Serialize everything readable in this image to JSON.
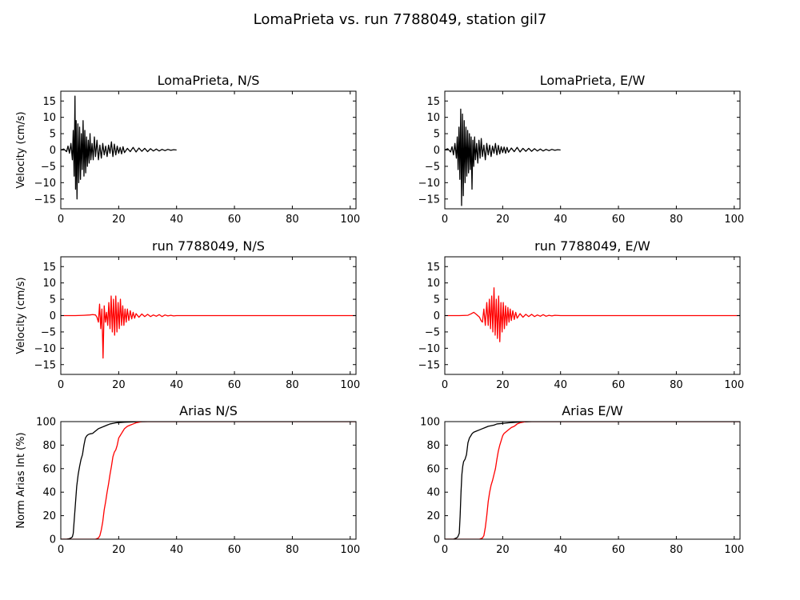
{
  "figure": {
    "title": "LomaPrieta vs. run 7788049, station gil7"
  },
  "colors": {
    "recorded": "#000000",
    "simulated": "#ff0000"
  },
  "chart_data": [
    {
      "type": "line",
      "title": "LomaPrieta, N/S",
      "xlabel": "",
      "ylabel": "Velocity (cm/s)",
      "xlim": [
        0,
        102
      ],
      "ylim": [
        -18,
        18
      ],
      "xticks": [
        0,
        20,
        40,
        60,
        80,
        100
      ],
      "yticks": [
        -15,
        -10,
        -5,
        0,
        5,
        10,
        15
      ],
      "series": [
        {
          "color": "#000000",
          "x": [
            0,
            1,
            2,
            2.5,
            3,
            3.5,
            4,
            4.3,
            4.6,
            4.9,
            5.1,
            5.3,
            5.6,
            5.9,
            6.2,
            6.5,
            6.8,
            7.1,
            7.4,
            7.7,
            8,
            8.3,
            8.6,
            8.9,
            9.2,
            9.5,
            9.8,
            10.1,
            10.4,
            10.8,
            11.2,
            11.6,
            12,
            12.5,
            13,
            13.5,
            14,
            14.5,
            15,
            15.5,
            16,
            16.5,
            17,
            17.5,
            18,
            18.5,
            19,
            19.5,
            20,
            20.5,
            21,
            21.5,
            22,
            23,
            24,
            25,
            26,
            27,
            28,
            29,
            30,
            31,
            32,
            33,
            34,
            35,
            36,
            37,
            38,
            39,
            40
          ],
          "y": [
            0,
            0.3,
            -0.5,
            1.2,
            -1,
            2,
            -3,
            6,
            -8,
            16.5,
            -12,
            9,
            -15,
            8,
            -10,
            7,
            -9,
            5,
            -6,
            9,
            -8,
            6,
            -7,
            4,
            -5,
            3,
            -4,
            5,
            -3,
            2,
            -3,
            4,
            -2,
            3,
            -3,
            1.5,
            -2.5,
            2,
            -1.5,
            1.2,
            -2,
            1.5,
            -1,
            2.5,
            -2,
            1.8,
            -1.5,
            1.2,
            -1,
            0.8,
            -1.2,
            1,
            -0.8,
            0.5,
            -0.5,
            0.8,
            -0.6,
            0.6,
            -0.4,
            0.5,
            -0.5,
            0.4,
            -0.3,
            0.3,
            -0.3,
            0.2,
            -0.2,
            0.2,
            -0.1,
            0.1,
            0
          ]
        }
      ]
    },
    {
      "type": "line",
      "title": "LomaPrieta, E/W",
      "xlabel": "",
      "ylabel": "",
      "xlim": [
        0,
        102
      ],
      "ylim": [
        -18,
        18
      ],
      "xticks": [
        0,
        20,
        40,
        60,
        80,
        100
      ],
      "yticks": [
        -15,
        -10,
        -5,
        0,
        5,
        10,
        15
      ],
      "series": [
        {
          "color": "#000000",
          "x": [
            0,
            1,
            2,
            2.5,
            3,
            3.5,
            4,
            4.3,
            4.6,
            4.9,
            5.2,
            5.5,
            5.8,
            6.1,
            6.4,
            6.7,
            7,
            7.3,
            7.6,
            7.9,
            8.2,
            8.5,
            8.8,
            9.1,
            9.4,
            9.7,
            10,
            10.3,
            10.6,
            11,
            11.4,
            11.8,
            12.2,
            12.6,
            13,
            13.5,
            14,
            14.5,
            15,
            15.5,
            16,
            16.5,
            17,
            17.5,
            18,
            18.5,
            19,
            19.5,
            20,
            20.5,
            21,
            21.5,
            22,
            23,
            24,
            25,
            26,
            27,
            28,
            29,
            30,
            31,
            32,
            33,
            34,
            35,
            36,
            37,
            38,
            39,
            40
          ],
          "y": [
            0,
            0.4,
            -0.6,
            1,
            -1.5,
            2,
            -2.5,
            4,
            -6,
            7,
            -9,
            12.5,
            -17,
            11,
            -14,
            9,
            -10,
            7,
            -8,
            6,
            -7,
            5,
            -6,
            4,
            -12,
            3,
            -5,
            4,
            -3,
            2,
            -4,
            3,
            -2.5,
            3.5,
            -2,
            1.5,
            -3,
            2,
            -1.5,
            1.5,
            -2,
            1.2,
            -1,
            2,
            -1.5,
            1.4,
            -1.2,
            1,
            -0.8,
            0.9,
            -1,
            0.8,
            -0.7,
            0.6,
            -0.5,
            0.8,
            -0.6,
            0.5,
            -0.4,
            0.5,
            -0.4,
            0.4,
            -0.3,
            0.3,
            -0.3,
            0.2,
            -0.2,
            0.2,
            -0.1,
            0.1,
            0
          ]
        }
      ]
    },
    {
      "type": "line",
      "title": "run 7788049, N/S",
      "xlabel": "",
      "ylabel": "Velocity (cm/s)",
      "xlim": [
        0,
        102
      ],
      "ylim": [
        -18,
        18
      ],
      "xticks": [
        0,
        20,
        40,
        60,
        80,
        100
      ],
      "yticks": [
        -15,
        -10,
        -5,
        0,
        5,
        10,
        15
      ],
      "series": [
        {
          "color": "#ff0000",
          "x": [
            0,
            5,
            8,
            10,
            11,
            12,
            12.5,
            13,
            13.4,
            13.8,
            14.2,
            14.6,
            15,
            15.4,
            15.8,
            16.2,
            16.6,
            17,
            17.4,
            17.8,
            18.2,
            18.6,
            19,
            19.4,
            19.8,
            20.2,
            20.6,
            21,
            21.4,
            21.8,
            22.2,
            22.6,
            23,
            23.5,
            24,
            24.5,
            25,
            25.5,
            26,
            27,
            28,
            29,
            30,
            31,
            32,
            33,
            34,
            35,
            36,
            37,
            38,
            39,
            40,
            42,
            45,
            50,
            60,
            70,
            80,
            90,
            100,
            102
          ],
          "y": [
            0,
            0,
            0.1,
            0.2,
            0.3,
            0.2,
            -0.5,
            -2,
            3.5,
            -4,
            2,
            -13,
            3,
            -2,
            1,
            -3,
            4,
            -4,
            6,
            -5,
            5,
            -6,
            6,
            -5,
            4,
            -4,
            5,
            -3,
            3,
            -3,
            2,
            -2,
            2,
            -1.5,
            1.5,
            -1,
            1,
            -0.8,
            0.6,
            -0.5,
            0.5,
            -0.3,
            0.4,
            -0.3,
            0.2,
            -0.2,
            0.3,
            -0.3,
            0.2,
            -0.1,
            0.1,
            -0.1,
            0,
            0,
            0,
            0,
            0,
            0,
            0,
            0,
            0,
            0
          ]
        }
      ]
    },
    {
      "type": "line",
      "title": "run 7788049, E/W",
      "xlabel": "",
      "ylabel": "",
      "xlim": [
        0,
        102
      ],
      "ylim": [
        -18,
        18
      ],
      "xticks": [
        0,
        20,
        40,
        60,
        80,
        100
      ],
      "yticks": [
        -15,
        -10,
        -5,
        0,
        5,
        10,
        15
      ],
      "series": [
        {
          "color": "#ff0000",
          "x": [
            0,
            5,
            8,
            9,
            10,
            11,
            12,
            12.5,
            13,
            13.5,
            14,
            14.5,
            15,
            15.4,
            15.8,
            16.2,
            16.6,
            17,
            17.4,
            17.8,
            18.2,
            18.6,
            19,
            19.4,
            19.8,
            20.2,
            20.6,
            21,
            21.4,
            21.8,
            22.2,
            22.6,
            23,
            23.5,
            24,
            24.5,
            25,
            26,
            27,
            28,
            29,
            30,
            31,
            32,
            33,
            34,
            35,
            36,
            37,
            38,
            40,
            45,
            50,
            60,
            70,
            80,
            90,
            100,
            102
          ],
          "y": [
            0,
            0,
            0.1,
            0.5,
            1,
            0.3,
            -0.5,
            -1.5,
            -2,
            2,
            -3,
            4,
            -3,
            5,
            -4,
            6,
            -5,
            8.5,
            -6,
            5,
            -7,
            6,
            -8,
            4,
            -5,
            4,
            -4,
            3,
            -3,
            2.5,
            -2,
            2,
            -1.5,
            1.5,
            -1.2,
            1,
            -0.8,
            0.6,
            -0.5,
            0.4,
            -0.3,
            0.4,
            -0.3,
            0.2,
            -0.2,
            0.3,
            -0.2,
            0.1,
            -0.1,
            0.1,
            0,
            0,
            0,
            0,
            0,
            0,
            0,
            0,
            0
          ]
        }
      ]
    },
    {
      "type": "line",
      "title": "Arias N/S",
      "xlabel": "",
      "ylabel": "Norm Arias Int (%)",
      "xlim": [
        0,
        102
      ],
      "ylim": [
        0,
        100
      ],
      "xticks": [
        0,
        20,
        40,
        60,
        80,
        100
      ],
      "yticks": [
        0,
        20,
        40,
        60,
        80,
        100
      ],
      "series": [
        {
          "color": "#000000",
          "x": [
            0,
            2,
            3,
            3.5,
            4,
            4.3,
            4.6,
            4.9,
            5.2,
            5.5,
            6,
            6.5,
            7,
            7.5,
            8,
            8.5,
            9,
            9.5,
            10,
            11,
            12,
            13,
            14,
            15,
            16,
            17,
            18,
            19,
            20,
            22,
            25,
            30,
            40,
            102
          ],
          "y": [
            0,
            0,
            0.5,
            1,
            2,
            5,
            15,
            25,
            35,
            45,
            55,
            62,
            68,
            72,
            80,
            86,
            88,
            89,
            89.5,
            90,
            92,
            94,
            95,
            96,
            97,
            98,
            98.5,
            99,
            99.2,
            99.5,
            99.8,
            100,
            100,
            100
          ]
        },
        {
          "color": "#ff0000",
          "x": [
            0,
            12,
            13,
            13.5,
            14,
            14.5,
            15,
            15.5,
            16,
            16.5,
            17,
            17.5,
            18,
            18.5,
            19,
            19.5,
            20,
            20.5,
            21,
            21.5,
            22,
            23,
            24,
            25,
            26,
            27,
            28,
            30,
            102
          ],
          "y": [
            0,
            0,
            1,
            3,
            8,
            15,
            25,
            32,
            40,
            47,
            55,
            62,
            70,
            74,
            76,
            80,
            86,
            88,
            90,
            92,
            94,
            96,
            97,
            98,
            99,
            99.5,
            100,
            100,
            100
          ]
        }
      ]
    },
    {
      "type": "line",
      "title": "Arias E/W",
      "xlabel": "",
      "ylabel": "",
      "xlim": [
        0,
        102
      ],
      "ylim": [
        0,
        100
      ],
      "xticks": [
        0,
        20,
        40,
        60,
        80,
        100
      ],
      "yticks": [
        0,
        20,
        40,
        60,
        80,
        100
      ],
      "series": [
        {
          "color": "#000000",
          "x": [
            0,
            3,
            4,
            4.5,
            5,
            5.3,
            5.6,
            5.9,
            6.2,
            6.5,
            7,
            7.5,
            8,
            8.5,
            9,
            9.5,
            10,
            11,
            12,
            13,
            14,
            15,
            16,
            17,
            18,
            20,
            22,
            25,
            30,
            40,
            102
          ],
          "y": [
            0,
            0,
            1,
            2,
            5,
            20,
            40,
            55,
            62,
            66,
            68,
            72,
            82,
            86,
            88,
            90,
            91,
            92,
            93,
            94,
            95,
            96,
            96.5,
            97,
            98,
            98.5,
            99,
            99.5,
            100,
            100,
            100
          ]
        },
        {
          "color": "#ff0000",
          "x": [
            0,
            12,
            13,
            13.5,
            14,
            14.5,
            15,
            15.5,
            16,
            16.5,
            17,
            17.5,
            18,
            18.5,
            19,
            19.5,
            20,
            20.5,
            21,
            22,
            23,
            24,
            25,
            26,
            27,
            28,
            30,
            102
          ],
          "y": [
            0,
            0,
            1,
            3,
            10,
            20,
            32,
            40,
            46,
            50,
            55,
            60,
            68,
            75,
            80,
            84,
            88,
            90,
            91,
            93,
            95,
            96,
            98,
            99,
            99.5,
            100,
            100,
            100
          ]
        }
      ]
    }
  ]
}
